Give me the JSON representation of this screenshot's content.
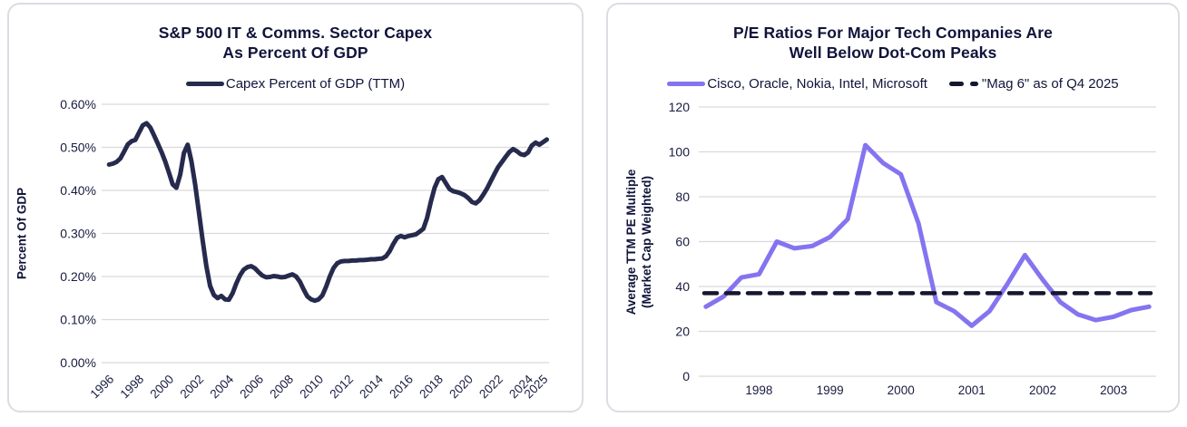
{
  "colors": {
    "navy_line": "#262a4d",
    "purple_line": "#8474f0",
    "dashed_line": "#14172e",
    "text_navy": "#10143a",
    "grid": "#d9d9de",
    "card_border": "#dcdce3",
    "background": "#ffffff"
  },
  "chart_data": [
    {
      "type": "line",
      "title_lines": [
        "S&P 500 IT & Comms. Sector Capex",
        "As Percent Of GDP"
      ],
      "legend": [
        {
          "label": "Capex Percent of GDP (TTM)",
          "color": "#262a4d",
          "dash": false
        }
      ],
      "ylabel_lines": [
        "Percent Of GDP"
      ],
      "xlabel": "",
      "grid": true,
      "legend_position": "top",
      "xlim": [
        1995.5,
        2025.4
      ],
      "ylim": [
        0,
        0.6
      ],
      "y_ticks": [
        {
          "value": 0.0,
          "label": "0.00%"
        },
        {
          "value": 0.1,
          "label": "0.10%"
        },
        {
          "value": 0.2,
          "label": "0.20%"
        },
        {
          "value": 0.3,
          "label": "0.30%"
        },
        {
          "value": 0.4,
          "label": "0.40%"
        },
        {
          "value": 0.5,
          "label": "0.50%"
        },
        {
          "value": 0.6,
          "label": "0.60%"
        }
      ],
      "x_ticks": [
        {
          "value": 1996,
          "label": "1996"
        },
        {
          "value": 1998,
          "label": "1998"
        },
        {
          "value": 2000,
          "label": "2000"
        },
        {
          "value": 2002,
          "label": "2002"
        },
        {
          "value": 2004,
          "label": "2004"
        },
        {
          "value": 2006,
          "label": "2006"
        },
        {
          "value": 2008,
          "label": "2008"
        },
        {
          "value": 2010,
          "label": "2010"
        },
        {
          "value": 2012,
          "label": "2012"
        },
        {
          "value": 2014,
          "label": "2014"
        },
        {
          "value": 2016,
          "label": "2016"
        },
        {
          "value": 2018,
          "label": "2018"
        },
        {
          "value": 2020,
          "label": "2020"
        },
        {
          "value": 2022,
          "label": "2022"
        },
        {
          "value": 2024,
          "label": "2024"
        },
        {
          "value": 2025,
          "label": "2025"
        }
      ],
      "series": [
        {
          "name": "Capex Percent of GDP (TTM)",
          "color": "#262a4d",
          "width": 5,
          "dash": false,
          "x_start": 1996.0,
          "x_step": 0.25,
          "values": [
            0.46,
            0.462,
            0.466,
            0.474,
            0.49,
            0.507,
            0.514,
            0.517,
            0.534,
            0.551,
            0.556,
            0.546,
            0.528,
            0.509,
            0.489,
            0.467,
            0.441,
            0.414,
            0.406,
            0.437,
            0.487,
            0.506,
            0.468,
            0.413,
            0.349,
            0.284,
            0.224,
            0.178,
            0.157,
            0.15,
            0.155,
            0.147,
            0.146,
            0.161,
            0.184,
            0.203,
            0.216,
            0.222,
            0.224,
            0.219,
            0.21,
            0.202,
            0.198,
            0.199,
            0.201,
            0.2,
            0.198,
            0.199,
            0.202,
            0.205,
            0.2,
            0.188,
            0.17,
            0.154,
            0.147,
            0.144,
            0.147,
            0.156,
            0.176,
            0.2,
            0.22,
            0.231,
            0.235,
            0.236,
            0.236,
            0.237,
            0.237,
            0.238,
            0.238,
            0.239,
            0.24,
            0.24,
            0.241,
            0.242,
            0.247,
            0.259,
            0.276,
            0.29,
            0.294,
            0.291,
            0.294,
            0.296,
            0.298,
            0.304,
            0.311,
            0.336,
            0.373,
            0.406,
            0.426,
            0.431,
            0.417,
            0.403,
            0.398,
            0.396,
            0.393,
            0.389,
            0.382,
            0.373,
            0.37,
            0.377,
            0.39,
            0.404,
            0.421,
            0.438,
            0.454,
            0.466,
            0.478,
            0.489,
            0.496,
            0.491,
            0.484,
            0.482,
            0.488,
            0.504,
            0.511,
            0.506,
            0.512,
            0.518
          ]
        }
      ]
    },
    {
      "type": "line",
      "title_lines": [
        "P/E Ratios For Major Tech Companies Are",
        "Well Below Dot-Com Peaks"
      ],
      "legend": [
        {
          "label": "Cisco, Oracle, Nokia, Intel, Microsoft",
          "color": "#8474f0",
          "dash": false
        },
        {
          "label": "\"Mag 6\" as of Q4 2025",
          "color": "#14172e",
          "dash": true
        }
      ],
      "ylabel_lines": [
        "Average TTM PE Multiple",
        "(Market Cap Weighted)"
      ],
      "xlabel": "",
      "grid": true,
      "legend_position": "top",
      "xlim": [
        1997.15,
        2003.6
      ],
      "ylim": [
        0,
        120
      ],
      "y_ticks": [
        {
          "value": 0,
          "label": "0"
        },
        {
          "value": 20,
          "label": "20"
        },
        {
          "value": 40,
          "label": "40"
        },
        {
          "value": 60,
          "label": "60"
        },
        {
          "value": 80,
          "label": "80"
        },
        {
          "value": 100,
          "label": "100"
        },
        {
          "value": 120,
          "label": "120"
        }
      ],
      "x_ticks": [
        {
          "value": 1998,
          "label": "1998"
        },
        {
          "value": 1999,
          "label": "1999"
        },
        {
          "value": 2000,
          "label": "2000"
        },
        {
          "value": 2001,
          "label": "2001"
        },
        {
          "value": 2002,
          "label": "2002"
        },
        {
          "value": 2003,
          "label": "2003"
        }
      ],
      "series": [
        {
          "name": "Cisco, Oracle, Nokia, Intel, Microsoft",
          "color": "#8474f0",
          "width": 5,
          "dash": false,
          "x_start": 1997.25,
          "x_step": 0.25,
          "values": [
            31,
            35.5,
            44,
            45.5,
            60,
            57,
            58,
            62,
            70,
            103,
            95,
            90,
            68,
            33,
            29,
            22.5,
            29,
            41,
            54,
            43,
            33,
            27.5,
            25,
            26.5,
            29.5,
            31
          ]
        },
        {
          "name": "\"Mag 6\" as of Q4 2025",
          "color": "#14172e",
          "width": 4.5,
          "dash": true,
          "hline": 37
        }
      ]
    }
  ]
}
